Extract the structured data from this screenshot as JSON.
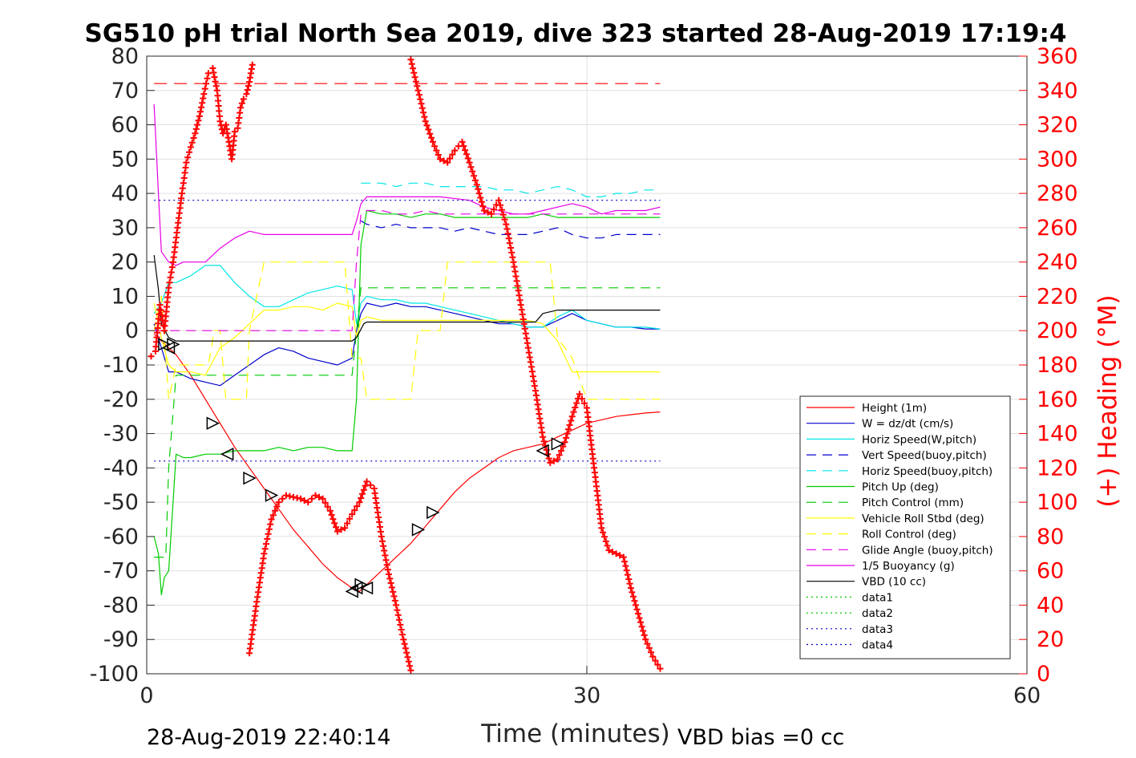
{
  "chart_data": {
    "type": "line",
    "title": "SG510 pH trial North Sea 2019, dive 323 started 28-Aug-2019 17:19:4",
    "xlabel": "Time (minutes)",
    "ylabel": "",
    "y2label": "(+) Heading (°M)",
    "xlim": [
      0,
      60
    ],
    "ylim": [
      -100,
      80
    ],
    "y2lim": [
      0,
      360
    ],
    "xticks": [
      "0",
      "30",
      "60"
    ],
    "yticks": [
      "80",
      "70",
      "60",
      "50",
      "40",
      "30",
      "20",
      "10",
      "0",
      "-10",
      "-20",
      "-30",
      "-40",
      "-50",
      "-60",
      "-70",
      "-80",
      "-90",
      "-100"
    ],
    "y2ticks": [
      "360",
      "340",
      "320",
      "300",
      "280",
      "260",
      "240",
      "220",
      "200",
      "180",
      "160",
      "140",
      "120",
      "100",
      "80",
      "60",
      "40",
      "20",
      "0"
    ],
    "grid": true,
    "legend_position": "lower-right",
    "footer_left": "28-Aug-2019 22:40:14",
    "footer_right": "VBD bias =0 cc",
    "colors": {
      "red": "#ff0000",
      "blue": "#0000cc",
      "cyan": "#00e6e6",
      "green": "#00cc00",
      "yellow": "#ffff00",
      "magenta": "#e600e6",
      "black": "#000000"
    },
    "series": [
      {
        "name": "Height (1m)",
        "color": "#ff0000",
        "dash": "solid",
        "x": [
          0.5,
          1,
          2,
          3,
          4,
          5,
          6,
          7,
          8,
          9,
          10,
          11,
          12,
          13,
          14,
          14.5,
          15,
          16,
          17,
          18,
          19,
          20,
          21,
          22,
          23,
          24,
          25,
          26,
          27,
          28,
          29,
          30,
          31,
          32,
          33,
          34,
          35
        ],
        "y": [
          -1,
          -3,
          -7,
          -13,
          -20,
          -27,
          -34,
          -40,
          -46,
          -52,
          -58,
          -63,
          -68,
          -72,
          -75,
          -76,
          -74,
          -70,
          -66,
          -62,
          -57,
          -52,
          -47,
          -43,
          -40,
          -37,
          -35,
          -34,
          -33,
          -31,
          -29,
          -27,
          -26,
          -25,
          -24.5,
          -24,
          -23.7
        ]
      },
      {
        "name": "W = dz/dt (cm/s)",
        "color": "#0000cc",
        "dash": "solid",
        "x": [
          0.5,
          1,
          1.5,
          2,
          3,
          4,
          5,
          6,
          7,
          8,
          9,
          10,
          11,
          12,
          13,
          14,
          14.3,
          14.6,
          15,
          16,
          17,
          18,
          19,
          20,
          21,
          22,
          23,
          24,
          25,
          26,
          27,
          28,
          29,
          30,
          31,
          32,
          33,
          34,
          35
        ],
        "y": [
          2,
          -5,
          -12,
          -12,
          -14,
          -15,
          -16,
          -13,
          -10,
          -7,
          -5,
          -6,
          -8,
          -9,
          -10,
          -8,
          0,
          5,
          8,
          7,
          8,
          7,
          7,
          6,
          5,
          4,
          3,
          2,
          2,
          1,
          1,
          3,
          5,
          3,
          2,
          1,
          1,
          0.5,
          0.5
        ]
      },
      {
        "name": "Horiz Speed(W,pitch)",
        "color": "#00e6e6",
        "dash": "solid",
        "x": [
          0.5,
          1,
          1.5,
          2,
          3,
          4,
          5,
          6,
          7,
          8,
          9,
          10,
          11,
          12,
          13,
          14,
          14.3,
          14.6,
          15,
          16,
          17,
          18,
          19,
          20,
          21,
          22,
          23,
          24,
          25,
          26,
          27,
          28,
          29,
          30,
          31,
          32,
          33,
          34,
          35
        ],
        "y": [
          5,
          8,
          14,
          14,
          16,
          19,
          19,
          14,
          10,
          7,
          7,
          9,
          11,
          12,
          13,
          12,
          2,
          8,
          10,
          9,
          9,
          8,
          8,
          7,
          6,
          5,
          4,
          3,
          2,
          1,
          1,
          4,
          6,
          3,
          2,
          1,
          1,
          1,
          0.5
        ]
      },
      {
        "name": "Vert Speed(buoy,pitch)",
        "color": "#0000cc",
        "dash": "dashed",
        "x": [
          14.6,
          15,
          16,
          17,
          18,
          19,
          20,
          21,
          22,
          23,
          24,
          25,
          26,
          27,
          28,
          29,
          30,
          31,
          32,
          33,
          34,
          35
        ],
        "y": [
          32,
          31,
          30,
          31,
          30,
          30,
          30,
          29,
          30,
          29,
          28,
          28,
          28,
          29,
          30,
          28,
          27,
          27,
          28,
          28,
          28,
          28
        ]
      },
      {
        "name": "Horiz Speed(buoy,pitch)",
        "color": "#00e6e6",
        "dash": "dashed",
        "x": [
          14.6,
          15,
          16,
          17,
          18,
          19,
          20,
          21,
          22,
          23,
          24,
          25,
          26,
          27,
          28,
          29,
          30,
          31,
          32,
          33,
          34,
          35
        ],
        "y": [
          43,
          43,
          43,
          42,
          43,
          43,
          42,
          42,
          42,
          42,
          41,
          41,
          40,
          41,
          42,
          41,
          39,
          39,
          40,
          40,
          41,
          41
        ]
      },
      {
        "name": "Pitch Up (deg)",
        "color": "#00cc00",
        "dash": "solid",
        "x": [
          0.5,
          0.8,
          1,
          1.2,
          1.5,
          1.8,
          2,
          2.5,
          3,
          4,
          5,
          6,
          7,
          8,
          9,
          10,
          11,
          12,
          13,
          14,
          14.3,
          14.6,
          15,
          16,
          17,
          18,
          19,
          20,
          21,
          22,
          23,
          24,
          25,
          26,
          27,
          28,
          29,
          30,
          31,
          32,
          33,
          34,
          35
        ],
        "y": [
          -60,
          -65,
          -77,
          -72,
          -70,
          -50,
          -36,
          -37,
          -37,
          -36,
          -36,
          -35,
          -35,
          -35,
          -34,
          -35,
          -34,
          -34,
          -35,
          -35,
          -20,
          25,
          35,
          34,
          34,
          33,
          34,
          34,
          33,
          33,
          33,
          33,
          33,
          33,
          34,
          33,
          33,
          33,
          33,
          33,
          33,
          33,
          33
        ]
      },
      {
        "name": "Pitch Control (mm)",
        "color": "#00cc00",
        "dash": "dashed",
        "x": [
          0.5,
          1,
          1.3,
          1.5,
          2,
          2.5,
          14,
          14.6,
          15,
          35
        ],
        "y": [
          -66,
          -66,
          -66,
          -40,
          -13,
          -13,
          -13,
          12.5,
          12.5,
          12.5
        ]
      },
      {
        "name": "Vehicle Roll Stbd (deg)",
        "color": "#ffff00",
        "dash": "solid",
        "x": [
          0.5,
          1,
          1.5,
          2,
          3,
          4,
          5,
          6,
          7,
          8,
          9,
          10,
          11,
          12,
          13,
          14,
          14.3,
          14.6,
          15,
          16,
          17,
          18,
          19,
          20,
          21,
          22,
          23,
          24,
          25,
          26,
          27,
          28,
          29,
          30,
          31,
          32,
          33,
          34,
          35
        ],
        "y": [
          8,
          -2,
          -10,
          -12,
          -12,
          -13,
          -5,
          -2,
          2,
          6,
          6,
          7,
          7,
          6,
          8,
          7,
          -2,
          3,
          4,
          3,
          3,
          3,
          3,
          3,
          3,
          3,
          3,
          3,
          3,
          3,
          2,
          -3,
          -12,
          -12,
          -12,
          -12,
          -12,
          -12,
          -12
        ]
      },
      {
        "name": "Roll Control (deg)",
        "color": "#ffff00",
        "dash": "dashed",
        "x": [
          0.5,
          1,
          1.5,
          2,
          3.5,
          4.2,
          4.6,
          5,
          5.4,
          6.8,
          7,
          8,
          13.5,
          14,
          14.6,
          15,
          18,
          18.5,
          20,
          20.5,
          27.5,
          28,
          29,
          30,
          35
        ],
        "y": [
          0,
          10,
          -20,
          -10,
          -10,
          -10,
          0,
          0,
          -20,
          -20,
          0,
          20,
          20,
          -8,
          -8,
          -20,
          -20,
          0,
          0,
          20,
          20,
          -2,
          -8,
          -20,
          -20
        ]
      },
      {
        "name": "Glide Angle (buoy,pitch)",
        "color": "#e600e6",
        "dash": "dashed",
        "x": [
          0.5,
          2,
          14,
          14.3,
          14.6,
          15,
          16,
          17,
          18,
          19,
          20,
          21,
          22,
          23,
          24,
          25,
          26,
          27,
          28,
          29,
          30,
          31,
          32,
          33,
          34,
          35
        ],
        "y": [
          0,
          0,
          0,
          20,
          34,
          35,
          35,
          34,
          34,
          35,
          34,
          34,
          34,
          34,
          34,
          34,
          34,
          34,
          34,
          34,
          34,
          34,
          34,
          34,
          34,
          34
        ]
      },
      {
        "name": "1/5 Buoyancy (g)",
        "color": "#e600e6",
        "dash": "solid",
        "x": [
          0.5,
          0.8,
          1,
          1.5,
          2,
          2.5,
          3,
          4,
          5,
          6,
          7,
          8,
          10,
          12,
          14,
          14.3,
          14.6,
          15,
          16,
          18,
          20,
          22,
          23,
          24,
          25,
          26,
          27,
          28,
          29,
          30,
          31,
          32,
          33,
          34,
          35
        ],
        "y": [
          66,
          40,
          23,
          20,
          19,
          20,
          20,
          20,
          24,
          27,
          29,
          28,
          28,
          28,
          28,
          32,
          37,
          39,
          39,
          39,
          39,
          38,
          36,
          35,
          34,
          34,
          35,
          36,
          37,
          36,
          34,
          35,
          35,
          35,
          36
        ]
      },
      {
        "name": "VBD (10 cc)",
        "color": "#000000",
        "dash": "solid",
        "x": [
          0.5,
          0.8,
          1,
          1.5,
          2,
          14,
          14.3,
          14.8,
          15,
          26,
          26.5,
          27,
          28,
          35
        ],
        "y": [
          22,
          12,
          2,
          -2,
          -3,
          -3,
          -2,
          2,
          2.5,
          2.5,
          2.5,
          5,
          6,
          6
        ]
      },
      {
        "name": "data1",
        "color": "#00cc00",
        "dash": "dotted",
        "x": [],
        "y": []
      },
      {
        "name": "data2",
        "color": "#00cc00",
        "dash": "dotted",
        "x": [],
        "y": []
      },
      {
        "name": "data3",
        "color": "#0000cc",
        "dash": "dotted",
        "x": [
          0.5,
          35
        ],
        "y": [
          38,
          38
        ]
      },
      {
        "name": "data4",
        "color": "#0000cc",
        "dash": "dotted",
        "x": [
          0.5,
          35
        ],
        "y": [
          -38,
          -38
        ]
      }
    ],
    "unlabeled_lines": [
      {
        "color": "#ff0000",
        "dash": "longdash",
        "x": [
          0.5,
          35
        ],
        "y": [
          72,
          72
        ]
      }
    ],
    "markers": {
      "x": [
        1.2,
        1.5,
        1.8,
        4.5,
        5.5,
        7,
        8.5,
        14,
        14.3,
        14.6,
        15,
        18.5,
        19.5,
        27,
        28
      ],
      "y": [
        -4,
        -5,
        -4,
        -27,
        -36,
        -43,
        -48,
        -76,
        -75,
        -74,
        -75,
        -58,
        -53,
        -35,
        -33
      ],
      "dir": [
        "right",
        "left",
        "right",
        "right",
        "left",
        "right",
        "right",
        "left",
        "left",
        "right",
        "left",
        "right",
        "right",
        "left",
        "right"
      ]
    },
    "heading": {
      "axis": "right",
      "color": "#ff0000",
      "segments": [
        {
          "x": [
            0.3,
            0.6,
            0.9,
            1.2,
            1.5,
            1.8,
            2.1,
            2.4,
            2.7,
            3,
            3.3,
            3.6,
            3.9,
            4.2,
            4.5,
            4.8,
            5,
            5.2,
            5.4,
            5.6,
            5.8,
            6,
            6.2,
            6.4,
            6.6,
            6.8,
            7,
            7.2
          ],
          "y": [
            185,
            188,
            215,
            200,
            225,
            240,
            260,
            280,
            298,
            307,
            315,
            325,
            338,
            350,
            353,
            340,
            322,
            315,
            320,
            310,
            300,
            316,
            318,
            330,
            335,
            338,
            345,
            355
          ]
        },
        {
          "x": [
            7,
            7.5,
            8,
            8.5,
            9,
            9.5,
            10,
            10.5,
            11,
            11.5,
            12,
            12.5,
            13,
            13.5,
            14,
            14.5,
            15,
            15.5,
            16,
            16.5,
            17,
            17.5,
            18
          ],
          "y": [
            12,
            42,
            70,
            90,
            100,
            104,
            103,
            102,
            100,
            104,
            102,
            95,
            83,
            85,
            93,
            100,
            112,
            108,
            80,
            58,
            40,
            20,
            2
          ]
        },
        {
          "x": [
            18,
            18.5,
            19,
            19.5,
            20,
            20.5,
            21,
            21.5,
            22,
            22.5,
            23,
            23.5,
            24,
            24.5,
            25,
            25.5,
            26,
            26.5,
            27,
            27.5,
            28,
            28.5,
            29,
            29.5,
            30,
            30.5,
            31,
            31.5,
            32,
            32.5,
            33,
            33.5,
            34,
            34.5,
            35
          ],
          "y": [
            358,
            340,
            322,
            310,
            300,
            298,
            305,
            310,
            298,
            285,
            270,
            268,
            276,
            262,
            240,
            215,
            190,
            165,
            138,
            123,
            125,
            135,
            150,
            163,
            155,
            120,
            85,
            72,
            70,
            68,
            50,
            35,
            20,
            10,
            3
          ]
        }
      ]
    }
  }
}
